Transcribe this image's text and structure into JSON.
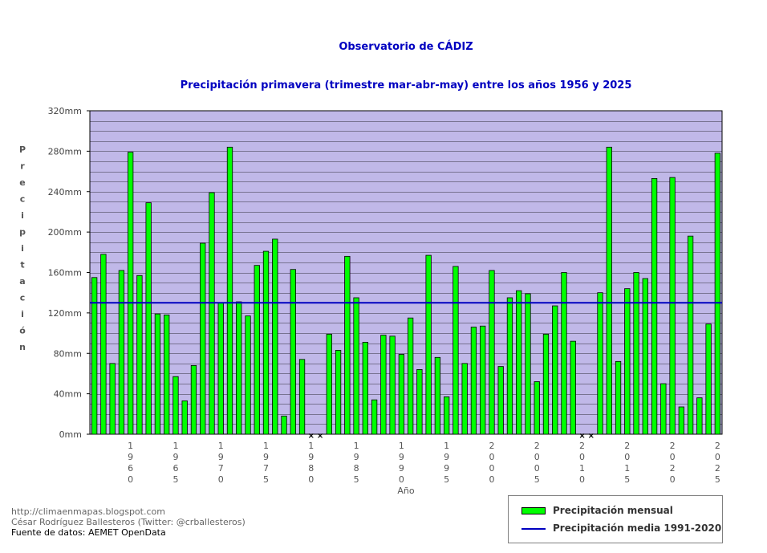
{
  "chart_data": {
    "type": "bar",
    "title": "Observatorio de CÁDIZ",
    "subtitle": "Precipitación primavera (trimestre mar-abr-may) entre los años 1956 y 2025",
    "xlabel": "Año",
    "ylabel": "Precipitación",
    "ylim": [
      0,
      320
    ],
    "y_ticks": [
      "0mm",
      "40mm",
      "80mm",
      "120mm",
      "160mm",
      "200mm",
      "240mm",
      "280mm",
      "320mm"
    ],
    "x": [
      1956,
      1957,
      1958,
      1959,
      1960,
      1961,
      1962,
      1963,
      1964,
      1965,
      1966,
      1967,
      1968,
      1969,
      1970,
      1971,
      1972,
      1973,
      1974,
      1975,
      1976,
      1977,
      1978,
      1979,
      1980,
      1981,
      1982,
      1983,
      1984,
      1985,
      1986,
      1987,
      1988,
      1989,
      1990,
      1991,
      1992,
      1993,
      1994,
      1995,
      1996,
      1997,
      1998,
      1999,
      2000,
      2001,
      2002,
      2003,
      2004,
      2005,
      2006,
      2007,
      2008,
      2009,
      2010,
      2011,
      2012,
      2013,
      2014,
      2015,
      2016,
      2017,
      2018,
      2019,
      2020,
      2021,
      2022,
      2023,
      2024,
      2025
    ],
    "x_tick_labels": [
      "1960",
      "1965",
      "1970",
      "1975",
      "1980",
      "1985",
      "1990",
      "1995",
      "2000",
      "2005",
      "2010",
      "2015",
      "2020",
      "2025"
    ],
    "series": [
      {
        "name": "Precipitación mensual",
        "color": "#00ff00",
        "values": [
          155,
          178,
          70,
          162,
          279,
          157,
          229,
          119,
          118,
          57,
          33,
          68,
          189,
          239,
          130,
          284,
          131,
          117,
          167,
          181,
          193,
          18,
          163,
          74,
          null,
          null,
          99,
          83,
          176,
          135,
          91,
          34,
          98,
          97,
          79,
          115,
          64,
          177,
          76,
          37,
          166,
          70,
          106,
          107,
          162,
          67,
          135,
          142,
          139,
          52,
          99,
          127,
          160,
          92,
          null,
          null,
          140,
          284,
          72,
          144,
          160,
          154,
          253,
          50,
          254,
          27,
          196,
          36,
          109,
          278
        ]
      },
      {
        "name": "Precipitación media 1991-2020",
        "color": "#0000c0",
        "value": 130
      }
    ],
    "missing_marker": "××",
    "legend_position": "bottom-right",
    "grid": true,
    "plot_background": "#c0b8e8"
  },
  "credits": {
    "line1": "http://climaenmapas.blogspot.com",
    "line2": "César Rodríguez Ballesteros (Twitter: @crballesteros)",
    "line3": "Fuente de datos: AEMET OpenData"
  },
  "legend": {
    "bar_label": "Precipitación mensual",
    "line_label": "Precipitación media 1991-2020"
  }
}
